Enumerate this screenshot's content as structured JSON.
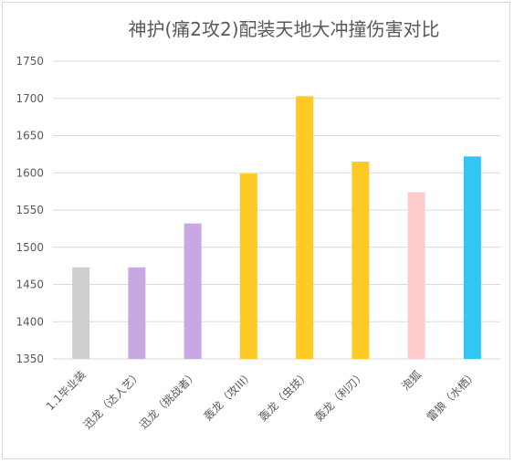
{
  "chart_data": {
    "type": "bar",
    "title": "神护(痛2攻2)配装天地大冲撞伤害对比",
    "xlabel": "",
    "ylabel": "",
    "ylim": [
      1350,
      1750
    ],
    "yticks": [
      1350,
      1400,
      1450,
      1500,
      1550,
      1600,
      1650,
      1700,
      1750
    ],
    "grid": true,
    "categories": [
      "1.1毕业装",
      "迅龙（达人艺）",
      "迅龙（挑战者）",
      "轰龙（攻III）",
      "轰龙（虫技）",
      "轰龙（利刃）",
      "泡狐",
      "雷狼（水栖）"
    ],
    "values": [
      1473,
      1473,
      1532,
      1599,
      1703,
      1615,
      1574,
      1622
    ],
    "colors": [
      "#d0cece",
      "#c9a7e3",
      "#c9a7e3",
      "#ffc926",
      "#ffc926",
      "#ffc926",
      "#ffcccc",
      "#33c6f4"
    ]
  }
}
